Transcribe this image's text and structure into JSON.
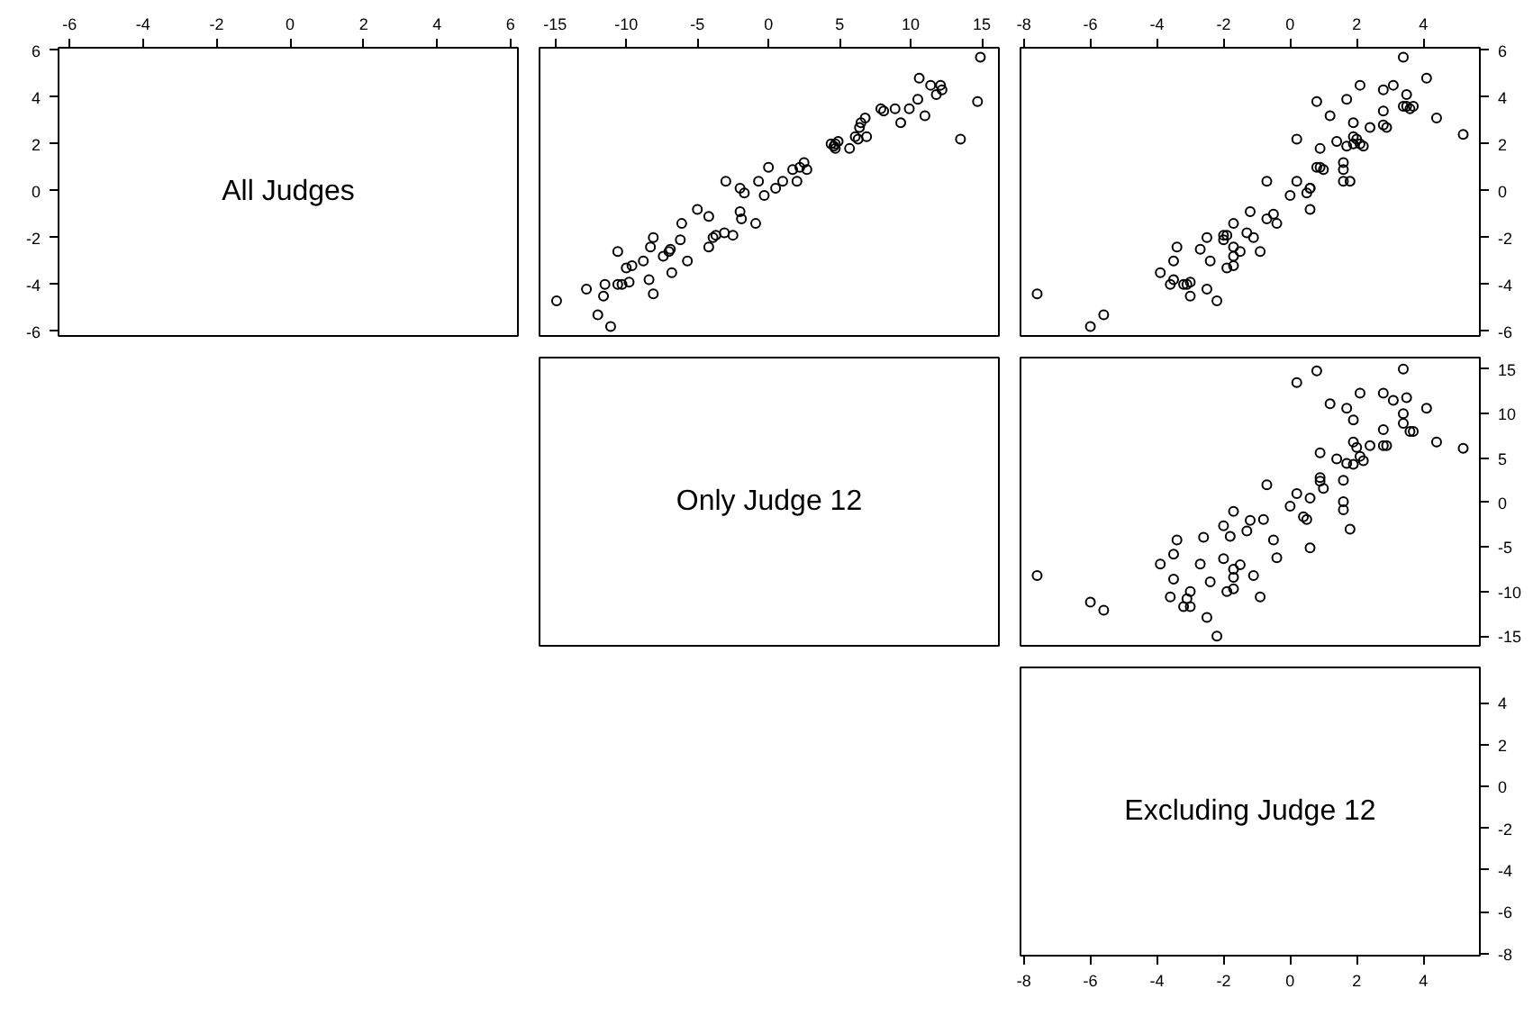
{
  "chart_data": [
    {
      "type": "scatter",
      "title": "All Judges",
      "xlim": [
        -6.3,
        6.2
      ],
      "xticks": [
        -6,
        -4,
        -2,
        0,
        2,
        4,
        6
      ],
      "ylim": [
        -6.2,
        6.1
      ],
      "yticks": [
        -6,
        -4,
        -2,
        0,
        2,
        4,
        6
      ]
    },
    {
      "type": "scatter",
      "marker": "circle",
      "tick_labels": "x",
      "xlim": [
        -16.1,
        16.2
      ],
      "xticks": [
        -15,
        -10,
        -5,
        0,
        5,
        10,
        15
      ],
      "ylim": [
        -6.2,
        6.1
      ],
      "yticks": [
        -6,
        -4,
        -2,
        0,
        2,
        4,
        6
      ],
      "series": [
        {
          "color": "#000000",
          "x": [
            -14.9,
            -12.8,
            -12.0,
            -11.6,
            -11.5,
            -11.1,
            -10.6,
            -10.3,
            -10.6,
            -10.0,
            -9.8,
            -9.6,
            -8.8,
            -8.4,
            -8.3,
            -8.1,
            -8.1,
            -7.4,
            -7.0,
            -6.9,
            -6.8,
            -6.2,
            -6.1,
            -5.7,
            -5.0,
            -4.2,
            -4.2,
            -3.9,
            -3.7,
            -3.1,
            -3.0,
            -2.5,
            -2.0,
            -1.7,
            -2.0,
            -1.9,
            -0.9,
            -0.7,
            -0.3,
            0.0,
            0.5,
            1.0,
            1.7,
            2.0,
            2.2,
            2.5,
            2.7,
            4.4,
            4.6,
            4.7,
            4.9,
            4.7,
            5.7,
            6.1,
            6.3,
            6.4,
            6.5,
            6.8,
            6.9,
            7.9,
            8.1,
            8.9,
            9.3,
            9.9,
            10.5,
            10.6,
            11.0,
            11.4,
            11.8,
            12.1,
            12.2,
            13.5,
            14.7,
            14.9
          ],
          "values": [
            -4.7,
            -4.2,
            -5.3,
            -4.5,
            -4.0,
            -5.8,
            -4.0,
            -4.0,
            -2.6,
            -3.3,
            -3.9,
            -3.2,
            -3.0,
            -3.8,
            -2.4,
            -2.0,
            -4.4,
            -2.8,
            -2.6,
            -2.5,
            -3.5,
            -2.1,
            -1.4,
            -3.0,
            -0.8,
            -1.1,
            -2.4,
            -2.0,
            -1.9,
            -1.8,
            0.4,
            -1.9,
            0.1,
            -0.1,
            -0.9,
            -1.2,
            -1.4,
            0.4,
            -0.2,
            1.0,
            0.1,
            0.4,
            0.9,
            0.4,
            1.0,
            1.2,
            0.9,
            2.0,
            1.9,
            2.0,
            2.1,
            1.8,
            1.8,
            2.3,
            2.2,
            2.7,
            2.9,
            3.1,
            2.3,
            3.5,
            3.4,
            3.5,
            2.9,
            3.5,
            3.9,
            4.8,
            3.2,
            4.5,
            4.1,
            4.5,
            4.3,
            2.2,
            3.8,
            5.7
          ]
        }
      ]
    },
    {
      "type": "scatter",
      "marker": "circle",
      "xlim": [
        -8.1,
        5.7
      ],
      "xticks": [
        -8,
        -6,
        -4,
        -2,
        0,
        2,
        4
      ],
      "ylim": [
        -6.2,
        6.1
      ],
      "yticks": [
        -6,
        -4,
        -2,
        0,
        2,
        4,
        6
      ],
      "series": [
        {
          "color": "#000000",
          "x": [
            -7.6,
            -6.0,
            -5.6,
            -3.9,
            -3.6,
            -3.5,
            -3.5,
            -3.4,
            -3.2,
            -3.1,
            -3.0,
            -3.0,
            -2.7,
            -2.5,
            -2.5,
            -2.4,
            -2.2,
            -2.0,
            -2.0,
            -1.9,
            -1.9,
            -1.7,
            -1.7,
            -1.7,
            -1.7,
            -1.5,
            -1.3,
            -1.2,
            -1.1,
            -0.9,
            -0.7,
            -0.7,
            -0.5,
            -0.4,
            0.0,
            0.2,
            0.2,
            0.5,
            0.6,
            0.6,
            0.6,
            0.8,
            0.8,
            0.9,
            0.9,
            1.0,
            1.2,
            1.4,
            1.6,
            1.6,
            1.6,
            1.7,
            1.7,
            1.8,
            1.9,
            1.9,
            1.9,
            2.0,
            2.1,
            2.1,
            2.2,
            2.4,
            2.8,
            2.8,
            2.8,
            2.9,
            3.1,
            3.4,
            3.4,
            3.5,
            3.5,
            3.6,
            3.7,
            4.1,
            4.4,
            5.2
          ],
          "values": [
            -4.4,
            -5.8,
            -5.3,
            -3.5,
            -4.0,
            -3.8,
            -3.0,
            -2.4,
            -4.0,
            -4.0,
            -4.5,
            -3.9,
            -2.5,
            -2.0,
            -4.2,
            -3.0,
            -4.7,
            -2.1,
            -1.9,
            -3.3,
            -1.9,
            -2.8,
            -3.2,
            -1.4,
            -2.4,
            -2.6,
            -1.8,
            -0.9,
            -2.0,
            -2.6,
            -1.2,
            0.4,
            -1.0,
            -1.4,
            -0.2,
            2.2,
            0.4,
            -0.1,
            0.1,
            0.1,
            -0.8,
            3.8,
            1.0,
            1.8,
            1.0,
            0.9,
            3.2,
            2.1,
            0.4,
            1.2,
            0.9,
            3.9,
            1.9,
            0.4,
            2.9,
            2.0,
            2.3,
            2.2,
            4.5,
            2.0,
            1.9,
            2.7,
            4.3,
            2.8,
            3.4,
            2.7,
            4.5,
            5.7,
            3.6,
            3.6,
            4.1,
            3.5,
            3.6,
            4.8,
            3.1,
            2.4
          ]
        }
      ]
    },
    {
      "type": "other",
      "title": "Only Judge 12"
    },
    {
      "type": "scatter",
      "marker": "circle",
      "tick_labels": "y",
      "xlim": [
        -8.1,
        5.7
      ],
      "xticks": [
        -8,
        -6,
        -4,
        -2,
        0,
        2,
        4
      ],
      "ylim": [
        -16.1,
        16.3
      ],
      "yticks": [
        -15,
        -10,
        -5,
        0,
        5,
        10,
        15
      ],
      "series": [
        {
          "color": "#000000",
          "x": [
            -7.6,
            -6.0,
            -5.6,
            -3.9,
            -3.5,
            -3.5,
            -3.4,
            -3.6,
            -3.2,
            -3.1,
            -3.0,
            -3.0,
            -2.7,
            -2.6,
            -2.5,
            -2.4,
            -2.2,
            -2.0,
            -2.0,
            -1.9,
            -1.8,
            -1.7,
            -1.7,
            -1.7,
            -1.7,
            -1.5,
            -1.3,
            -1.2,
            -1.1,
            -0.9,
            -0.8,
            -0.7,
            -0.5,
            -0.4,
            0.0,
            0.2,
            0.2,
            0.4,
            0.5,
            0.6,
            0.6,
            0.8,
            0.9,
            0.9,
            0.9,
            1.0,
            1.2,
            1.4,
            1.6,
            1.6,
            1.6,
            1.7,
            1.7,
            1.8,
            1.9,
            1.9,
            1.9,
            2.0,
            2.1,
            2.1,
            2.2,
            2.4,
            2.8,
            2.8,
            2.8,
            2.9,
            3.1,
            3.4,
            3.4,
            3.4,
            3.5,
            3.6,
            3.7,
            4.1,
            4.4,
            5.2
          ],
          "values": [
            -8.2,
            -11.2,
            -12.1,
            -6.9,
            -8.6,
            -5.8,
            -4.2,
            -10.6,
            -11.7,
            -10.8,
            -11.7,
            -10.0,
            -6.9,
            -3.9,
            -12.9,
            -8.9,
            -15.0,
            -6.3,
            -2.6,
            -10.0,
            -3.8,
            -7.5,
            -9.7,
            -1.0,
            -8.4,
            -7.0,
            -3.2,
            -2.0,
            -8.2,
            -10.6,
            -1.9,
            2.0,
            -4.2,
            -6.2,
            -0.4,
            13.5,
            1.0,
            -1.6,
            -1.9,
            0.5,
            -5.1,
            14.8,
            2.4,
            5.6,
            2.8,
            1.6,
            11.1,
            4.9,
            -0.8,
            2.5,
            0.1,
            10.6,
            4.4,
            -3.0,
            9.3,
            4.3,
            6.8,
            6.2,
            12.3,
            5.2,
            4.7,
            6.4,
            12.3,
            8.2,
            6.4,
            6.4,
            11.5,
            8.9,
            15.0,
            10.0,
            11.8,
            8.0,
            8.0,
            10.6,
            6.8,
            6.1
          ]
        }
      ]
    },
    {
      "type": "scatter",
      "title": "Excluding Judge 12",
      "xlim": [
        -8.1,
        5.7
      ],
      "xticks": [
        -8,
        -6,
        -4,
        -2,
        0,
        2,
        4
      ],
      "ylim": [
        -8.1,
        5.7
      ],
      "yticks": [
        -8,
        -6,
        -4,
        -2,
        0,
        2,
        4
      ]
    }
  ]
}
